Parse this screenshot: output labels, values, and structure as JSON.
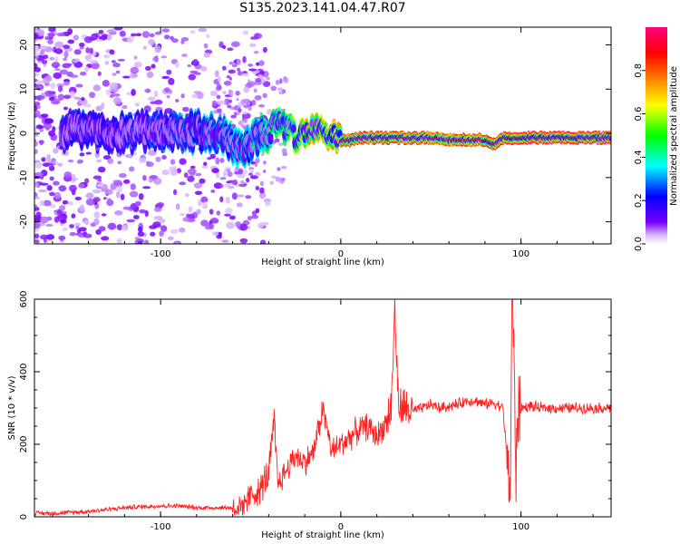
{
  "title": "S135.2023.141.04.47.R07",
  "chart_data": [
    {
      "type": "heatmap",
      "title": "",
      "xlabel": "Height of straight line (km)",
      "ylabel": "Frequency (Hz)",
      "xlim": [
        -170,
        150
      ],
      "ylim": [
        -25,
        24
      ],
      "xticks": [
        -100,
        0,
        100
      ],
      "yticks": [
        -20,
        -10,
        0,
        10,
        20
      ],
      "colorbar": {
        "label": "Normalized spectral amplitude",
        "range": [
          0.0,
          1.0
        ],
        "ticks": [
          0.0,
          0.2,
          0.4,
          0.6,
          0.8
        ],
        "colors": [
          "#ffffff",
          "#6a00ff",
          "#0000ff",
          "#00ffff",
          "#00ff00",
          "#ffff00",
          "#ff8000",
          "#ff0000",
          "#ff0080"
        ]
      },
      "ridge": {
        "x": [
          -150,
          -120,
          -90,
          -70,
          -60,
          -55,
          -50,
          -45,
          -40,
          -35,
          -30,
          -25,
          -20,
          -15,
          -10,
          -5,
          0,
          5,
          10,
          20,
          30,
          40,
          50,
          60,
          70,
          80,
          85,
          90,
          95,
          100,
          120,
          150
        ],
        "y": [
          0.5,
          0.5,
          0.2,
          0.5,
          -2.5,
          -4.5,
          -2.5,
          -1.0,
          0.5,
          2.0,
          0.5,
          -0.5,
          -0.5,
          0.5,
          0.0,
          0.5,
          -1.5,
          -1.5,
          -1.0,
          -1.0,
          -1.0,
          -1.0,
          -1.0,
          -1.5,
          -1.5,
          -1.5,
          -2.5,
          -1.0,
          -1.0,
          -1.0,
          -1.0,
          -1.0
        ],
        "amplitude": [
          0.2,
          0.2,
          0.25,
          0.3,
          0.35,
          0.4,
          0.35,
          0.4,
          0.45,
          0.5,
          0.5,
          0.6,
          0.7,
          0.7,
          0.7,
          0.75,
          0.8,
          0.85,
          0.85,
          0.85,
          0.85,
          0.85,
          0.8,
          0.8,
          0.85,
          0.85,
          0.8,
          0.9,
          0.9,
          0.9,
          0.9,
          0.9
        ]
      },
      "grid": false
    },
    {
      "type": "line",
      "title": "",
      "xlabel": "Height of straight line (km)",
      "ylabel": "SNR (10 * v/v)",
      "xlim": [
        -170,
        150
      ],
      "ylim": [
        0,
        600
      ],
      "xticks": [
        -100,
        0,
        100
      ],
      "yticks": [
        0,
        200,
        400,
        600
      ],
      "series": [
        {
          "color": "#ff2222",
          "x": [
            -170,
            -160,
            -150,
            -140,
            -130,
            -120,
            -110,
            -100,
            -90,
            -80,
            -70,
            -60,
            -55,
            -50,
            -45,
            -40,
            -37,
            -35,
            -30,
            -25,
            -20,
            -15,
            -10,
            -5,
            0,
            5,
            10,
            15,
            20,
            25,
            28,
            30,
            32,
            35,
            40,
            45,
            50,
            55,
            60,
            65,
            70,
            75,
            80,
            85,
            90,
            94,
            95,
            96,
            97,
            98,
            100,
            105,
            110,
            120,
            130,
            140,
            150
          ],
          "y": [
            10,
            10,
            12,
            15,
            20,
            25,
            28,
            30,
            30,
            25,
            25,
            25,
            30,
            60,
            70,
            120,
            260,
            90,
            130,
            170,
            150,
            180,
            300,
            180,
            200,
            220,
            240,
            250,
            220,
            260,
            300,
            580,
            300,
            300,
            290,
            300,
            310,
            300,
            305,
            310,
            320,
            320,
            310,
            315,
            300,
            60,
            620,
            500,
            80,
            280,
            300,
            305,
            300,
            300,
            300,
            300,
            300
          ]
        }
      ],
      "grid": false
    }
  ]
}
